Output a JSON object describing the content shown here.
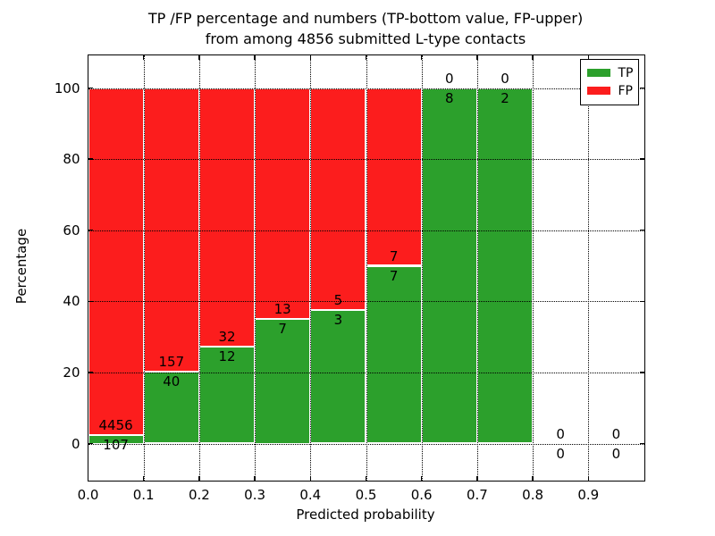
{
  "figure": {
    "title_line1": "TP /FP percentage and numbers (TP-bottom value, FP-upper)",
    "title_line2": "from among 4856 submitted L-type contacts"
  },
  "axes": {
    "xlabel": "Predicted probability",
    "ylabel": "Percentage",
    "x_tick_labels": [
      "0.0",
      "0.1",
      "0.2",
      "0.3",
      "0.4",
      "0.5",
      "0.6",
      "0.7",
      "0.8",
      "0.9"
    ],
    "x_tick_values": [
      0.0,
      0.1,
      0.2,
      0.3,
      0.4,
      0.5,
      0.6,
      0.7,
      0.8,
      0.9
    ],
    "y_tick_labels": [
      "0",
      "20",
      "40",
      "60",
      "80",
      "100"
    ],
    "y_tick_values": [
      0,
      20,
      40,
      60,
      80,
      100
    ]
  },
  "legend": {
    "items": [
      {
        "label": "TP",
        "color": "#2ca02c"
      },
      {
        "label": "FP",
        "color": "#fc1d1d"
      }
    ]
  },
  "chart_data": {
    "type": "bar",
    "subtype": "stacked-normalized-100-percent",
    "title": "TP /FP percentage and numbers (TP-bottom value, FP-upper) from among 4856 submitted L-type contacts",
    "xlabel": "Predicted probability",
    "ylabel": "Percentage",
    "xlim": [
      0.0,
      1.0
    ],
    "ylim": [
      -10.3,
      109.3
    ],
    "grid": true,
    "grid_style": "dotted",
    "legend_position": "upper right",
    "total_contacts": 4856,
    "bin_edges": [
      0.0,
      0.1,
      0.2,
      0.3,
      0.4,
      0.5,
      0.6,
      0.7,
      0.8,
      0.9,
      1.0
    ],
    "categories": [
      "0.0-0.1",
      "0.1-0.2",
      "0.2-0.3",
      "0.3-0.4",
      "0.4-0.5",
      "0.5-0.6",
      "0.6-0.7",
      "0.7-0.8",
      "0.8-0.9",
      "0.9-1.0"
    ],
    "series": [
      {
        "name": "TP",
        "color": "#2ca02c",
        "counts": [
          107,
          40,
          12,
          7,
          3,
          7,
          8,
          2,
          0,
          0
        ]
      },
      {
        "name": "FP",
        "color": "#fc1d1d",
        "counts": [
          4456,
          157,
          32,
          13,
          5,
          7,
          0,
          0,
          0,
          0
        ]
      }
    ],
    "tp_percent_of_bin": [
      2.3,
      20.3,
      27.3,
      35.0,
      37.5,
      50.0,
      100.0,
      100.0,
      null,
      null
    ],
    "annotation_rule": "FP count printed just above TP/FP boundary, TP count just below"
  }
}
